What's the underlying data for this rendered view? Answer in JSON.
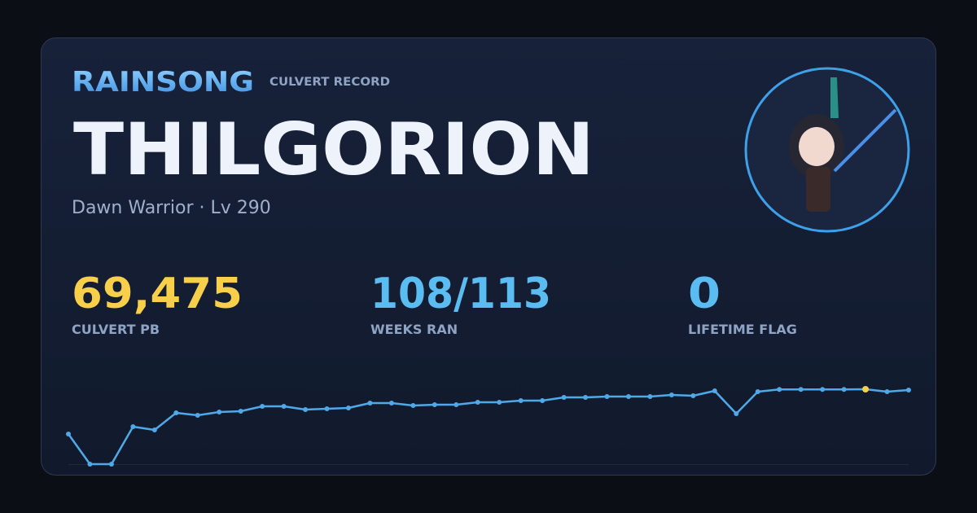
{
  "header": {
    "brand": "RAINSONG",
    "tag": "CULVERT RECORD",
    "name": "THILGORION",
    "subtitle": "Dawn Warrior · Lv 290"
  },
  "stats": [
    {
      "value": "69,475",
      "label": "CULVERT PB",
      "color": "#f7cf4a"
    },
    {
      "value": "108/113",
      "label": "WEEKS RAN",
      "color": "#5bbcf2"
    },
    {
      "value": "0",
      "label": "LIFETIME FLAG",
      "color": "#5bbcf2"
    }
  ],
  "chart_data": {
    "type": "line",
    "values": [
      27935,
      0,
      0,
      34730,
      31710,
      47565,
      45300,
      48320,
      49075,
      53605,
      53605,
      50585,
      51340,
      52095,
      56625,
      56625,
      54360,
      55115,
      55115,
      57380,
      57380,
      58890,
      58890,
      61910,
      61910,
      62665,
      62665,
      62665,
      64175,
      63420,
      67950,
      46810,
      67195,
      69300,
      69300,
      69300,
      69300,
      69475,
      67195,
      68705
    ],
    "color": "#4fa8e8",
    "highlight_color": "#f7cf4a"
  }
}
